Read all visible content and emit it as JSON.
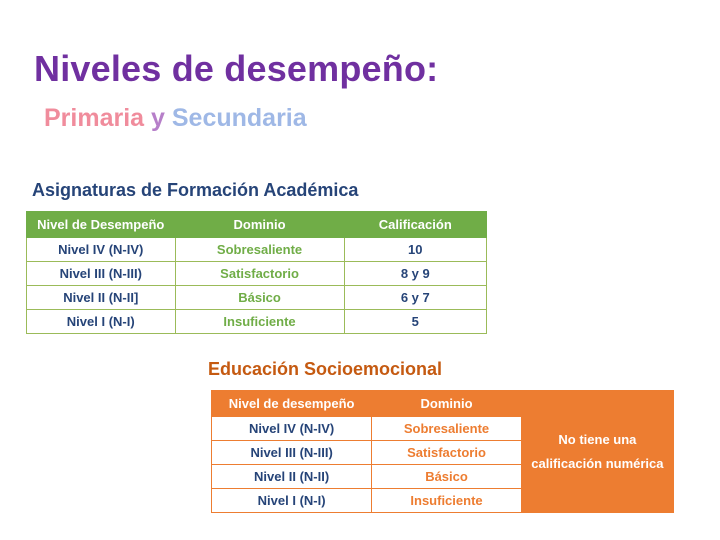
{
  "slide": {
    "title": "Niveles de desempeño:",
    "subtitle": {
      "primaria": "Primaria",
      "y": "y",
      "secundaria": "Secundaria"
    }
  },
  "academic": {
    "heading": "Asignaturas de Formación Académica",
    "headers": [
      "Nivel de Desempeño",
      "Dominio",
      "Calificación"
    ],
    "rows": [
      {
        "nivel": "Nivel IV (N-IV)",
        "dominio": "Sobresaliente",
        "calificacion": "10"
      },
      {
        "nivel": "Nivel III (N-III)",
        "dominio": "Satisfactorio",
        "calificacion": "8 y 9"
      },
      {
        "nivel": "Nivel II (N-II]",
        "dominio": "Básico",
        "calificacion": "6 y 7"
      },
      {
        "nivel": "Nivel I (N-I)",
        "dominio": "Insuficiente",
        "calificacion": "5"
      }
    ]
  },
  "socio": {
    "heading": "Educación Socioemocional",
    "headers": [
      "Nivel de desempeño",
      "Dominio"
    ],
    "note": "No tiene una calificación numérica",
    "rows": [
      {
        "nivel": "Nivel IV (N-IV)",
        "dominio": "Sobresaliente"
      },
      {
        "nivel": "Nivel III (N-III)",
        "dominio": "Satisfactorio"
      },
      {
        "nivel": "Nivel II (N-II)",
        "dominio": "Básico"
      },
      {
        "nivel": "Nivel I (N-I)",
        "dominio": "Insuficiente"
      }
    ]
  },
  "colors": {
    "title": "#7030a0",
    "academic_header": "#70ad47",
    "socio_header": "#ed7d31",
    "text_blue": "#264478"
  }
}
